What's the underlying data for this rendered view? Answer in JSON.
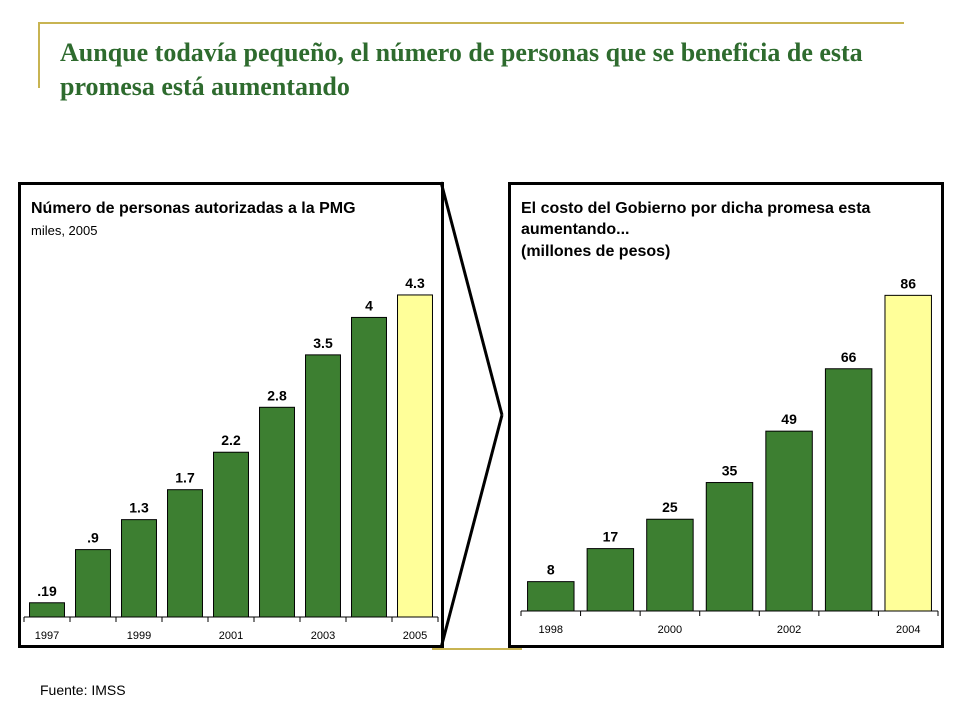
{
  "title": "Aunque todavía pequeño, el número de personas  que se beneficia de esta promesa está aumentando",
  "source": "Fuente: IMSS",
  "colors": {
    "title": "#2e6b2e",
    "bar": "#3d7f31",
    "highlight": "#ffff99",
    "accent": "#c8b452"
  },
  "chart_data": [
    {
      "type": "bar",
      "title": "Número de personas autorizadas a la PMG",
      "subtitle": "miles, 2005",
      "categories": [
        "1997",
        "1998",
        "1999",
        "2000",
        "2001",
        "2002",
        "2003",
        "2004",
        "2005"
      ],
      "values": [
        0.19,
        0.9,
        1.3,
        1.7,
        2.2,
        2.8,
        3.5,
        4.0,
        4.3
      ],
      "data_labels": [
        ".19",
        ".9",
        "1.3",
        "1.7",
        "2.2",
        "2.8",
        "3.5",
        "4",
        "4.3"
      ],
      "x_tick_labels": [
        "1997",
        "",
        "1999",
        "",
        "2001",
        "",
        "2003",
        "",
        "2005"
      ],
      "highlight_index": 8,
      "ylim": [
        0,
        4.7
      ],
      "grid": false
    },
    {
      "type": "bar",
      "title": "El costo del Gobierno por dicha promesa esta aumentando...",
      "subtitle": "(millones de pesos)",
      "categories": [
        "1998",
        "1999",
        "2000",
        "2001",
        "2002",
        "2003",
        "2004"
      ],
      "values": [
        8,
        17,
        25,
        35,
        49,
        66,
        86
      ],
      "data_labels": [
        "8",
        "17",
        "25",
        "35",
        "49",
        "66",
        "86"
      ],
      "x_tick_labels": [
        "1998",
        "",
        "2000",
        "",
        "2002",
        "",
        "2004"
      ],
      "highlight_index": 6,
      "ylim": [
        0,
        91
      ],
      "grid": false
    }
  ]
}
